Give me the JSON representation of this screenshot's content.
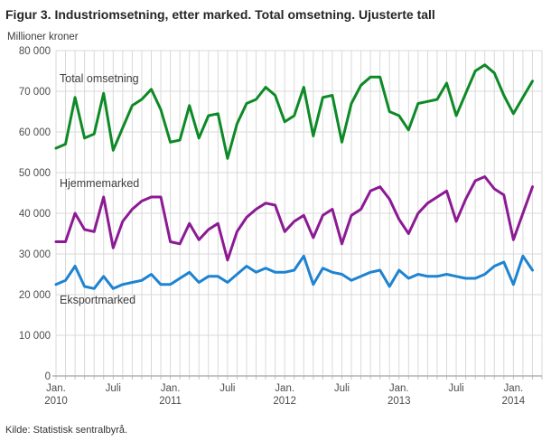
{
  "title": "Figur 3. Industriomsetning, etter marked. Total omsetning. Ujusterte tall",
  "source": "Kilde: Statistisk sentralbyrå.",
  "chart_data": {
    "type": "line",
    "title": "Figur 3. Industriomsetning, etter marked. Total omsetning. Ujusterte tall",
    "unit_label": "Millioner kroner",
    "ylim": [
      0,
      80000
    ],
    "y_tick_step": 10000,
    "y_tick_labels": [
      "0",
      "10 000",
      "20 000",
      "30 000",
      "40 000",
      "50 000",
      "60 000",
      "70 000",
      "80 000"
    ],
    "grid": "both",
    "legend_position": "inline-labels",
    "months": [
      "2010-01",
      "2010-02",
      "2010-03",
      "2010-04",
      "2010-05",
      "2010-06",
      "2010-07",
      "2010-08",
      "2010-09",
      "2010-10",
      "2010-11",
      "2010-12",
      "2011-01",
      "2011-02",
      "2011-03",
      "2011-04",
      "2011-05",
      "2011-06",
      "2011-07",
      "2011-08",
      "2011-09",
      "2011-10",
      "2011-11",
      "2011-12",
      "2012-01",
      "2012-02",
      "2012-03",
      "2012-04",
      "2012-05",
      "2012-06",
      "2012-07",
      "2012-08",
      "2012-09",
      "2012-10",
      "2012-11",
      "2012-12",
      "2013-01",
      "2013-02",
      "2013-03",
      "2013-04",
      "2013-05",
      "2013-06",
      "2013-07",
      "2013-08",
      "2013-09",
      "2013-10",
      "2013-11",
      "2013-12",
      "2014-01",
      "2014-02",
      "2014-03"
    ],
    "x_tick_labels": [
      {
        "i": 0,
        "top": "Jan.",
        "bottom": "2010"
      },
      {
        "i": 6,
        "top": "Juli",
        "bottom": ""
      },
      {
        "i": 12,
        "top": "Jan.",
        "bottom": "2011"
      },
      {
        "i": 18,
        "top": "Juli",
        "bottom": ""
      },
      {
        "i": 24,
        "top": "Jan.",
        "bottom": "2012"
      },
      {
        "i": 30,
        "top": "Juli",
        "bottom": ""
      },
      {
        "i": 36,
        "top": "Jan.",
        "bottom": "2013"
      },
      {
        "i": 42,
        "top": "Juli",
        "bottom": ""
      },
      {
        "i": 48,
        "top": "Jan.",
        "bottom": "2014"
      }
    ],
    "series": [
      {
        "id": "total-omsetning",
        "name": "Total omsetning",
        "color": "#0d8a26",
        "values": [
          56000,
          57000,
          68500,
          58500,
          59500,
          69500,
          55500,
          61000,
          66500,
          68000,
          70500,
          65500,
          57500,
          58000,
          66500,
          58500,
          64000,
          64500,
          53500,
          62000,
          67000,
          68000,
          71000,
          69000,
          62500,
          64000,
          71000,
          59000,
          68500,
          69000,
          57500,
          67000,
          71500,
          73500,
          73500,
          65000,
          64000,
          60500,
          67000,
          67500,
          68000,
          72000,
          64000,
          69500,
          75000,
          76500,
          74500,
          69000,
          64500,
          68500,
          72500
        ]
      },
      {
        "id": "hjemmemarked",
        "name": "Hjemmemarked",
        "color": "#8c1a94",
        "values": [
          33000,
          33000,
          40000,
          36000,
          35500,
          44000,
          31500,
          38000,
          41000,
          43000,
          44000,
          44000,
          33000,
          32500,
          37500,
          33500,
          36000,
          37500,
          28500,
          35500,
          39000,
          41000,
          42500,
          42000,
          35500,
          38000,
          39500,
          34000,
          39500,
          41000,
          32500,
          39500,
          41000,
          45500,
          46500,
          43500,
          38500,
          35000,
          40000,
          42500,
          44000,
          45500,
          38000,
          43500,
          48000,
          49000,
          46000,
          44500,
          33500,
          40000,
          46500
        ]
      },
      {
        "id": "eksportmarked",
        "name": "Eksportmarked",
        "color": "#1e83d0",
        "values": [
          22500,
          23500,
          27000,
          22000,
          21500,
          24500,
          21500,
          22500,
          23000,
          23500,
          25000,
          22500,
          22500,
          24000,
          25500,
          23000,
          24500,
          24500,
          23000,
          25000,
          27000,
          25500,
          26500,
          25500,
          25500,
          26000,
          29500,
          22500,
          26500,
          25500,
          25000,
          23500,
          24500,
          25500,
          26000,
          22000,
          26000,
          24000,
          25000,
          24500,
          24500,
          25000,
          24500,
          24000,
          24000,
          25000,
          27000,
          28000,
          22500,
          29500,
          26000
        ]
      }
    ]
  }
}
